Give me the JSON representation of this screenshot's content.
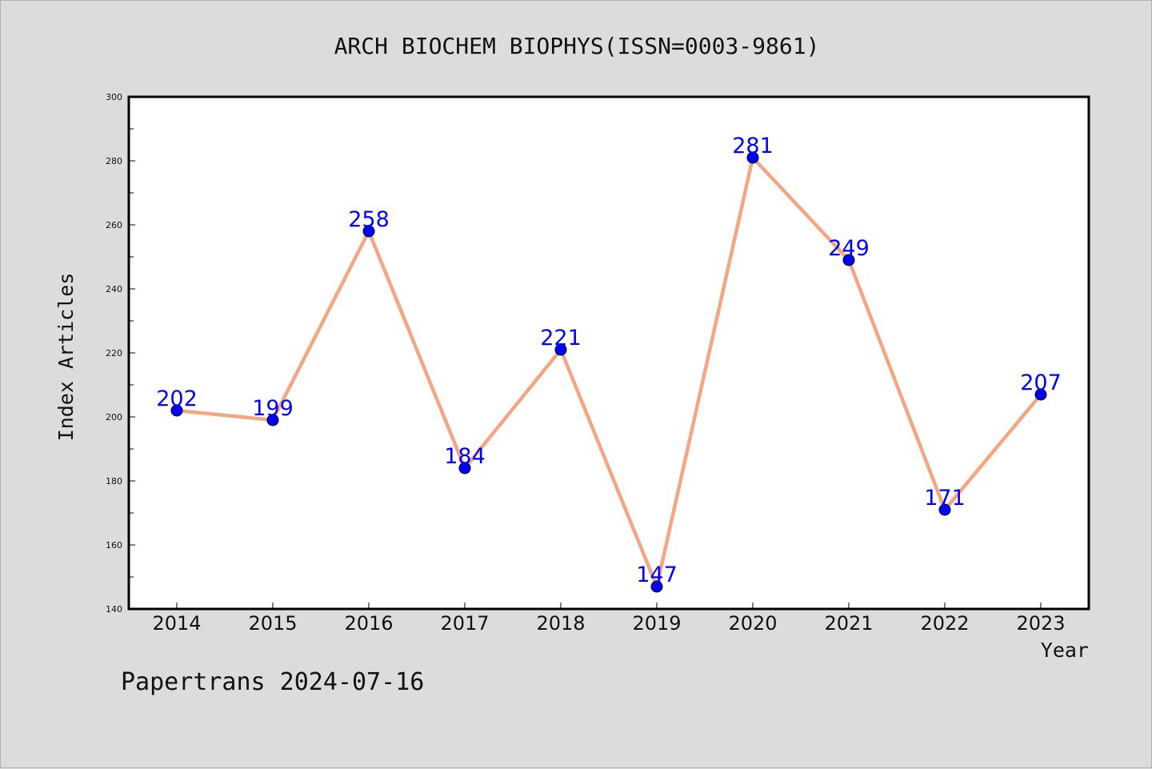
{
  "chart_data": {
    "type": "line",
    "title": "ARCH BIOCHEM BIOPHYS(ISSN=0003-9861)",
    "xlabel": "Year",
    "ylabel": "Index Articles",
    "categories": [
      "2014",
      "2015",
      "2016",
      "2017",
      "2018",
      "2019",
      "2020",
      "2021",
      "2022",
      "2023"
    ],
    "series": [
      {
        "values": [
          202,
          199,
          258,
          184,
          221,
          147,
          281,
          249,
          171,
          207
        ]
      }
    ],
    "data_labels": [
      "202",
      "199",
      "258",
      "184",
      "221",
      "147",
      "281",
      "249",
      "171",
      "207"
    ],
    "ylim": [
      140,
      300
    ],
    "y_ticks": [
      140,
      160,
      180,
      200,
      220,
      240,
      260,
      280,
      300
    ],
    "y_tick_labels": [
      "140",
      "160",
      "180",
      "200",
      "220",
      "240",
      "260",
      "280",
      "300"
    ],
    "grid": false,
    "legend": "none",
    "colors": {
      "line": "#f4a582",
      "marker": "#0000ff",
      "data_label": "#0000ff",
      "background": "#dcdcdc",
      "plot_background": "#ffffff"
    }
  },
  "footer": {
    "text": "Papertrans 2024-07-16"
  }
}
